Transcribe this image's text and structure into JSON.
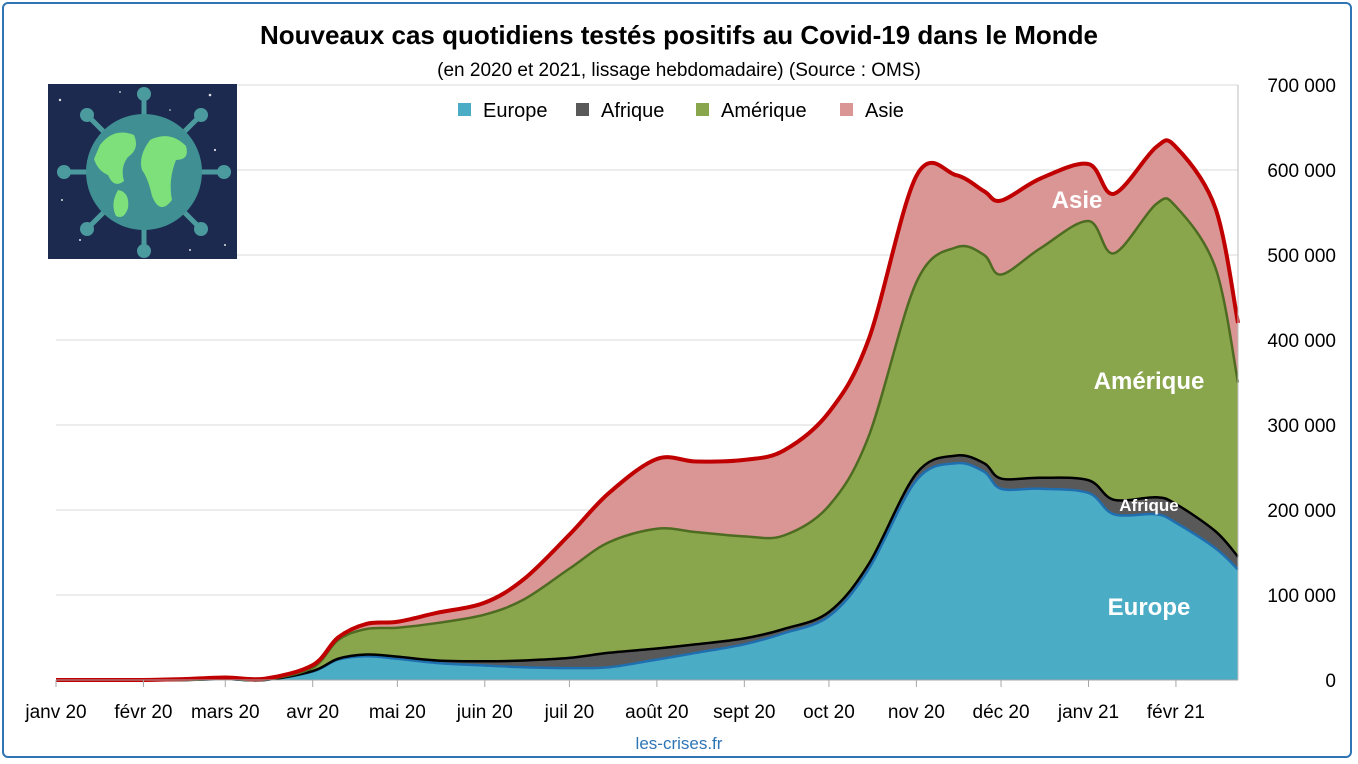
{
  "chart_data": {
    "type": "area",
    "stacked": true,
    "title": "Nouveaux cas quotidiens testés positifs au Covid-19 dans le Monde",
    "subtitle": "(en 2020 et 2021, lissage hebdomadaire) (Source : OMS)",
    "source": "les-crises.fr",
    "x_tick_labels": [
      "janv 20",
      "févr 20",
      "mars 20",
      "avr 20",
      "mai 20",
      "juin 20",
      "juil 20",
      "août 20",
      "sept 20",
      "oct 20",
      "nov 20",
      "déc 20",
      "janv 21",
      "févr 21"
    ],
    "y_tick_labels": [
      "0",
      "100 000",
      "200 000",
      "300 000",
      "400 000",
      "500 000",
      "600 000",
      "700 000"
    ],
    "ylim": [
      0,
      700000
    ],
    "y_axis_side": "right",
    "grid": true,
    "legend_position": "top",
    "x": [
      "2020-01-01",
      "2020-01-15",
      "2020-02-01",
      "2020-02-15",
      "2020-03-01",
      "2020-03-15",
      "2020-04-01",
      "2020-04-10",
      "2020-04-20",
      "2020-05-01",
      "2020-05-15",
      "2020-06-01",
      "2020-06-15",
      "2020-07-01",
      "2020-07-15",
      "2020-08-01",
      "2020-08-15",
      "2020-09-01",
      "2020-09-15",
      "2020-10-01",
      "2020-10-15",
      "2020-11-01",
      "2020-11-15",
      "2020-11-25",
      "2020-12-01",
      "2020-12-15",
      "2021-01-01",
      "2021-01-10",
      "2021-01-25",
      "2021-02-01",
      "2021-02-15",
      "2021-02-23"
    ],
    "series": [
      {
        "name": "Europe",
        "color": "#4bacc6",
        "line_color": "#1f6fb0",
        "values": [
          0,
          0,
          0,
          0,
          1000,
          0,
          10000,
          24000,
          28000,
          25000,
          20000,
          17000,
          15000,
          14000,
          15000,
          24000,
          32000,
          42000,
          55000,
          75000,
          130000,
          235000,
          255000,
          245000,
          225000,
          225000,
          220000,
          195000,
          195000,
          185000,
          155000,
          130000
        ]
      },
      {
        "name": "Afrique",
        "color": "#595959",
        "line_color": "#000000",
        "values": [
          0,
          0,
          0,
          0,
          0,
          0,
          500,
          1000,
          2000,
          2500,
          3000,
          5000,
          8000,
          12000,
          17000,
          13000,
          10000,
          7000,
          5000,
          5000,
          6000,
          8000,
          9000,
          10000,
          12000,
          13000,
          15000,
          17000,
          20000,
          22000,
          20000,
          15000
        ]
      },
      {
        "name": "Amérique",
        "color": "#8aa64c",
        "line_color": "#4e6b22",
        "values": [
          0,
          0,
          0,
          0,
          500,
          500,
          4000,
          22000,
          30000,
          34000,
          44000,
          55000,
          72000,
          105000,
          130000,
          141000,
          132000,
          120000,
          110000,
          125000,
          150000,
          225000,
          245000,
          245000,
          240000,
          270000,
          305000,
          290000,
          345000,
          350000,
          310000,
          205000
        ]
      },
      {
        "name": "Asie",
        "color": "#d99694",
        "line_color": "#c00000",
        "values": [
          0,
          0,
          0,
          1000,
          1500,
          1000,
          3000,
          3000,
          6000,
          7000,
          12000,
          14000,
          24000,
          40000,
          58000,
          82000,
          83000,
          90000,
          100000,
          110000,
          114000,
          125000,
          85000,
          75000,
          87000,
          82000,
          67000,
          70000,
          67000,
          70000,
          70000,
          70000
        ]
      }
    ],
    "area_labels": [
      "Asie",
      "Amérique",
      "Afrique",
      "Europe"
    ]
  }
}
